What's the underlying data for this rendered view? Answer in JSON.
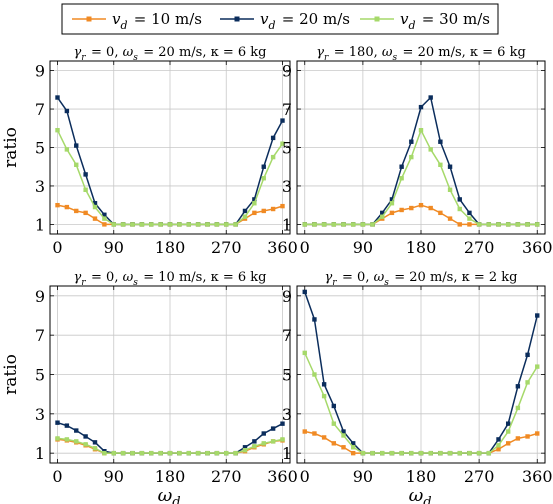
{
  "legend": [
    {
      "label": "v_d = 10 m/s",
      "color": "#f08a24"
    },
    {
      "label": "v_d = 20 m/s",
      "color": "#0b2d5c"
    },
    {
      "label": "v_d = 30 m/s",
      "color": "#a6d96a"
    }
  ],
  "chart_data": [
    {
      "type": "line",
      "title": "γ_r = 0, ω_s = 20 m/s, κ = 6 kg",
      "xlabel": "",
      "ylabel": "ratio",
      "xlim": [
        -12,
        372
      ],
      "ylim": [
        0.5,
        9.5
      ],
      "xticks": [
        0,
        90,
        180,
        270,
        360
      ],
      "yticks": [
        1,
        3,
        5,
        7,
        9
      ],
      "x": [
        0,
        15,
        30,
        45,
        60,
        75,
        90,
        105,
        120,
        135,
        150,
        165,
        180,
        195,
        210,
        225,
        240,
        255,
        270,
        285,
        300,
        315,
        330,
        345,
        360
      ],
      "series": [
        {
          "name": "v_d = 10 m/s",
          "color": "#f08a24",
          "values": [
            2.0,
            1.9,
            1.7,
            1.6,
            1.3,
            1.0,
            1.0,
            1.0,
            1.0,
            1.0,
            1.0,
            1.0,
            1.0,
            1.0,
            1.0,
            1.0,
            1.0,
            1.0,
            1.0,
            1.0,
            1.3,
            1.6,
            1.7,
            1.8,
            1.95
          ]
        },
        {
          "name": "v_d = 20 m/s",
          "color": "#0b2d5c",
          "values": [
            7.6,
            6.9,
            5.1,
            3.6,
            2.1,
            1.5,
            1.0,
            1.0,
            1.0,
            1.0,
            1.0,
            1.0,
            1.0,
            1.0,
            1.0,
            1.0,
            1.0,
            1.0,
            1.0,
            1.0,
            1.7,
            2.3,
            4.0,
            5.5,
            6.4
          ]
        },
        {
          "name": "v_d = 30 m/s",
          "color": "#a6d96a",
          "values": [
            5.9,
            4.9,
            4.1,
            2.8,
            1.9,
            1.3,
            1.0,
            1.0,
            1.0,
            1.0,
            1.0,
            1.0,
            1.0,
            1.0,
            1.0,
            1.0,
            1.0,
            1.0,
            1.0,
            1.0,
            1.4,
            2.1,
            3.4,
            4.5,
            5.2
          ]
        }
      ]
    },
    {
      "type": "line",
      "title": "γ_r = 180, ω_s = 20 m/s, κ = 6 kg",
      "xlabel": "",
      "ylabel": "",
      "xlim": [
        -12,
        372
      ],
      "ylim": [
        0.5,
        9.5
      ],
      "xticks": [
        0,
        90,
        180,
        270,
        360
      ],
      "yticks": [
        1,
        3,
        5,
        7,
        9
      ],
      "x": [
        0,
        15,
        30,
        45,
        60,
        75,
        90,
        105,
        120,
        135,
        150,
        165,
        180,
        195,
        210,
        225,
        240,
        255,
        270,
        285,
        300,
        315,
        330,
        345,
        360
      ],
      "series": [
        {
          "name": "v_d = 10 m/s",
          "color": "#f08a24",
          "values": [
            1.0,
            1.0,
            1.0,
            1.0,
            1.0,
            1.0,
            1.0,
            1.0,
            1.3,
            1.6,
            1.75,
            1.85,
            2.0,
            1.85,
            1.6,
            1.3,
            1.0,
            1.0,
            1.0,
            1.0,
            1.0,
            1.0,
            1.0,
            1.0,
            1.0
          ]
        },
        {
          "name": "v_d = 20 m/s",
          "color": "#0b2d5c",
          "values": [
            1.0,
            1.0,
            1.0,
            1.0,
            1.0,
            1.0,
            1.0,
            1.0,
            1.6,
            2.3,
            4.0,
            5.3,
            7.1,
            7.6,
            5.3,
            4.0,
            2.3,
            1.6,
            1.0,
            1.0,
            1.0,
            1.0,
            1.0,
            1.0,
            1.0
          ]
        },
        {
          "name": "v_d = 30 m/s",
          "color": "#a6d96a",
          "values": [
            1.0,
            1.0,
            1.0,
            1.0,
            1.0,
            1.0,
            1.0,
            1.0,
            1.4,
            2.1,
            3.4,
            4.5,
            5.9,
            4.9,
            4.1,
            2.8,
            1.8,
            1.3,
            1.0,
            1.0,
            1.0,
            1.0,
            1.0,
            1.0,
            1.0
          ]
        }
      ]
    },
    {
      "type": "line",
      "title": "γ_r = 0, ω_s = 10 m/s, κ = 6 kg",
      "xlabel": "ω_d",
      "ylabel": "ratio",
      "xlim": [
        -12,
        372
      ],
      "ylim": [
        0.5,
        9.5
      ],
      "xticks": [
        0,
        90,
        180,
        270,
        360
      ],
      "yticks": [
        1,
        3,
        5,
        7,
        9
      ],
      "x": [
        0,
        15,
        30,
        45,
        60,
        75,
        90,
        105,
        120,
        135,
        150,
        165,
        180,
        195,
        210,
        225,
        240,
        255,
        270,
        285,
        300,
        315,
        330,
        345,
        360
      ],
      "series": [
        {
          "name": "v_d = 10 m/s",
          "color": "#f08a24",
          "values": [
            1.7,
            1.65,
            1.55,
            1.4,
            1.2,
            1.0,
            1.0,
            1.0,
            1.0,
            1.0,
            1.0,
            1.0,
            1.0,
            1.0,
            1.0,
            1.0,
            1.0,
            1.0,
            1.0,
            1.0,
            1.1,
            1.3,
            1.45,
            1.6,
            1.65
          ]
        },
        {
          "name": "v_d = 20 m/s",
          "color": "#0b2d5c",
          "values": [
            2.55,
            2.4,
            2.15,
            1.85,
            1.55,
            1.1,
            1.0,
            1.0,
            1.0,
            1.0,
            1.0,
            1.0,
            1.0,
            1.0,
            1.0,
            1.0,
            1.0,
            1.0,
            1.0,
            1.0,
            1.3,
            1.6,
            2.0,
            2.25,
            2.5
          ]
        },
        {
          "name": "v_d = 30 m/s",
          "color": "#a6d96a",
          "values": [
            1.75,
            1.7,
            1.6,
            1.45,
            1.25,
            1.0,
            1.0,
            1.0,
            1.0,
            1.0,
            1.0,
            1.0,
            1.0,
            1.0,
            1.0,
            1.0,
            1.0,
            1.0,
            1.0,
            1.0,
            1.15,
            1.35,
            1.5,
            1.6,
            1.7
          ]
        }
      ]
    },
    {
      "type": "line",
      "title": "γ_r = 0, ω_s = 20 m/s, κ = 2 kg",
      "xlabel": "ω_d",
      "ylabel": "",
      "xlim": [
        -12,
        372
      ],
      "ylim": [
        0.5,
        9.5
      ],
      "xticks": [
        0,
        90,
        180,
        270,
        360
      ],
      "yticks": [
        1,
        3,
        5,
        7,
        9
      ],
      "x": [
        0,
        15,
        30,
        45,
        60,
        75,
        90,
        105,
        120,
        135,
        150,
        165,
        180,
        195,
        210,
        225,
        240,
        255,
        270,
        285,
        300,
        315,
        330,
        345,
        360
      ],
      "series": [
        {
          "name": "v_d = 10 m/s",
          "color": "#f08a24",
          "values": [
            2.1,
            2.0,
            1.8,
            1.5,
            1.3,
            1.0,
            1.0,
            1.0,
            1.0,
            1.0,
            1.0,
            1.0,
            1.0,
            1.0,
            1.0,
            1.0,
            1.0,
            1.0,
            1.0,
            1.0,
            1.2,
            1.5,
            1.75,
            1.85,
            2.0
          ]
        },
        {
          "name": "v_d = 20 m/s",
          "color": "#0b2d5c",
          "values": [
            9.2,
            7.8,
            4.5,
            3.4,
            2.1,
            1.5,
            1.0,
            1.0,
            1.0,
            1.0,
            1.0,
            1.0,
            1.0,
            1.0,
            1.0,
            1.0,
            1.0,
            1.0,
            1.0,
            1.0,
            1.7,
            2.5,
            4.4,
            6.0,
            8.0
          ]
        },
        {
          "name": "v_d = 30 m/s",
          "color": "#a6d96a",
          "values": [
            6.1,
            5.0,
            3.9,
            2.5,
            1.9,
            1.3,
            1.0,
            1.0,
            1.0,
            1.0,
            1.0,
            1.0,
            1.0,
            1.0,
            1.0,
            1.0,
            1.0,
            1.0,
            1.0,
            1.0,
            1.4,
            2.1,
            3.3,
            4.6,
            5.4
          ]
        }
      ]
    }
  ]
}
